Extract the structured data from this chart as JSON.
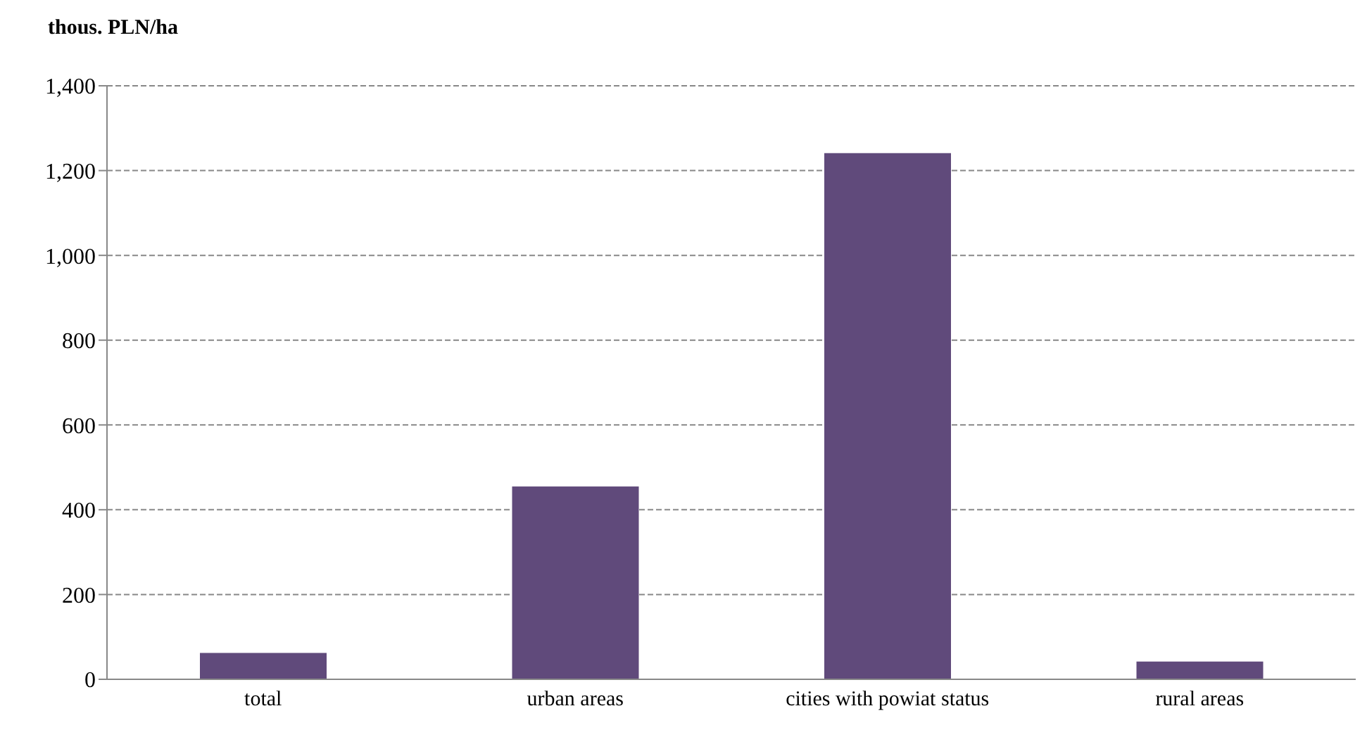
{
  "chart_data": {
    "type": "bar",
    "ylabel": "thous. PLN/ha",
    "categories": [
      "total",
      "urban areas",
      "cities with powiat status",
      "rural areas"
    ],
    "values": [
      62,
      455,
      1241,
      42
    ],
    "color": "#604a7b",
    "ylim": [
      0,
      1400
    ],
    "yticks": [
      0,
      200,
      400,
      600,
      800,
      {
        "value": 1000,
        "label": "1,000"
      },
      {
        "value": 1200,
        "label": "1,200"
      },
      {
        "value": 1400,
        "label": "1,400"
      }
    ],
    "grid": "y"
  }
}
